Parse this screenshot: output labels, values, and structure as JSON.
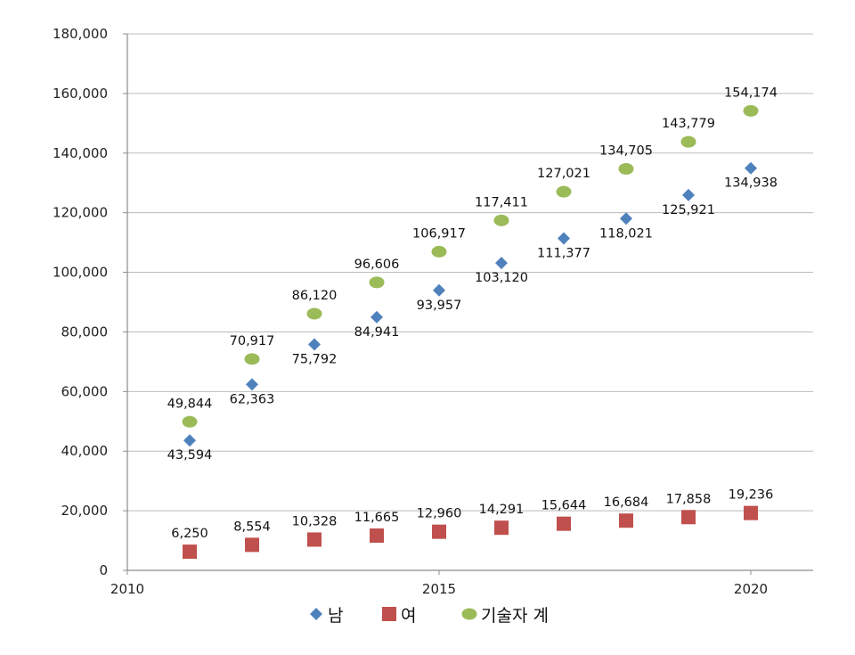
{
  "chart_data": {
    "type": "scatter",
    "xlim": [
      2010,
      2021
    ],
    "ylim": [
      0,
      180000
    ],
    "x_ticks": [
      2010,
      2015,
      2020
    ],
    "x_tick_labels": [
      "2010",
      "2015",
      "2020"
    ],
    "y_ticks": [
      0,
      20000,
      40000,
      60000,
      80000,
      100000,
      120000,
      140000,
      160000,
      180000
    ],
    "y_tick_labels": [
      "0",
      "20,000",
      "40,000",
      "60,000",
      "80,000",
      "100,000",
      "120,000",
      "140,000",
      "160,000",
      "180,000"
    ],
    "grid": true,
    "legend_position": "bottom",
    "x": [
      2011,
      2012,
      2013,
      2014,
      2015,
      2016,
      2017,
      2018,
      2019,
      2020
    ],
    "series": [
      {
        "name": "남",
        "marker": "diamond",
        "color": "#4F81BD",
        "label_position": "below",
        "values": [
          43594,
          62363,
          75792,
          84941,
          93957,
          103120,
          111377,
          118021,
          125921,
          134938
        ],
        "labels": [
          "43,594",
          "62,363",
          "75,792",
          "84,941",
          "93,957",
          "103,120",
          "111,377",
          "118,021",
          "125,921",
          "134,938"
        ]
      },
      {
        "name": "여",
        "marker": "square",
        "color": "#C0504D",
        "label_position": "above",
        "values": [
          6250,
          8554,
          10328,
          11665,
          12960,
          14291,
          15644,
          16684,
          17858,
          19236
        ],
        "labels": [
          "6,250",
          "8,554",
          "10,328",
          "11,665",
          "12,960",
          "14,291",
          "15,644",
          "16,684",
          "17,858",
          "19,236"
        ]
      },
      {
        "name": "기술자 계",
        "marker": "circle",
        "color": "#9BBB59",
        "label_position": "above",
        "values": [
          49844,
          70917,
          86120,
          96606,
          106917,
          117411,
          127021,
          134705,
          143779,
          154174
        ],
        "labels": [
          "49,844",
          "70,917",
          "86,120",
          "96,606",
          "106,917",
          "117,411",
          "127,021",
          "134,705",
          "143,779",
          "154,174"
        ]
      }
    ]
  }
}
